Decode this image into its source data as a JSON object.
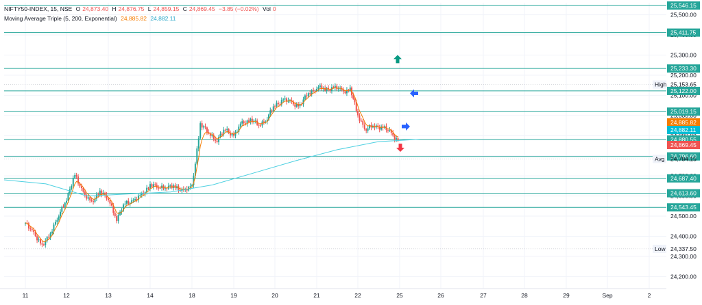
{
  "legend": {
    "symbol": "NIFTY50-INDEX, 15, NSE",
    "o_label": "O",
    "o": "24,873.40",
    "h_label": "H",
    "h": "24,876.75",
    "l_label": "L",
    "l": "24,859.15",
    "c_label": "C",
    "c": "24,869.45",
    "change": "−3.85 (−0.02%)",
    "vol_label": "Vol",
    "vol": "0",
    "ma_name": "Moving Average Triple (5, 200, Exponential)",
    "ma_fast": "24,885.82",
    "ma_slow": "24,882.11"
  },
  "colors": {
    "up": "#26a69a",
    "down": "#ef5350",
    "ma_fast": "#f57c00",
    "ma_slow": "#4dd0e1",
    "level": "#26a69a",
    "arrow_green": "#089981",
    "arrow_blue": "#2962ff",
    "arrow_red": "#f23645"
  },
  "chart_data": {
    "type": "candlestick",
    "x_ticks": [
      "11",
      "12",
      "13",
      "14",
      "18",
      "19",
      "20",
      "21",
      "22",
      "25",
      "26",
      "27",
      "28",
      "29",
      "Sep",
      "2"
    ],
    "y_ticks": [
      24200,
      24300,
      24400,
      24500,
      24600,
      24700,
      24800,
      24900,
      25000,
      25100,
      25200,
      25300,
      25400,
      25500
    ],
    "y_range": [
      24140,
      25560
    ],
    "levels": [
      25546.15,
      25411.75,
      25233.3,
      25122.0,
      25019.15,
      24880.55,
      24796.6,
      24687.4,
      24613.6,
      24543.45
    ],
    "high": {
      "label": "High",
      "value": 25153.65
    },
    "avg": {
      "label": "Avg",
      "value": 24784.15
    },
    "low": {
      "label": "Low",
      "value": 24337.5
    },
    "last_price": 24869.45,
    "ma_fast_last": 24885.82,
    "ma_slow_last": 24882.11,
    "arrows": [
      {
        "direction": "up",
        "color": "green",
        "day": "21",
        "price": 25280
      },
      {
        "direction": "left",
        "color": "blue",
        "day": "22",
        "price": 25110
      },
      {
        "direction": "right",
        "color": "blue",
        "day": "22",
        "price": 24945
      },
      {
        "direction": "down",
        "color": "red",
        "day": "22",
        "price": 24840
      }
    ],
    "anchors": [
      [
        "11",
        24460
      ],
      [
        "11",
        24420
      ],
      [
        "11",
        24345
      ],
      [
        "11",
        24420
      ],
      [
        "11",
        24500
      ],
      [
        "12",
        24590
      ],
      [
        "12",
        24700
      ],
      [
        "12",
        24620
      ],
      [
        "12",
        24560
      ],
      [
        "12",
        24630
      ],
      [
        "13",
        24580
      ],
      [
        "13",
        24490
      ],
      [
        "13",
        24560
      ],
      [
        "13",
        24580
      ],
      [
        "13",
        24600
      ],
      [
        "14",
        24660
      ],
      [
        "14",
        24640
      ],
      [
        "14",
        24650
      ],
      [
        "14",
        24640
      ],
      [
        "14",
        24630
      ],
      [
        "18",
        24640
      ],
      [
        "18",
        24960
      ],
      [
        "18",
        24910
      ],
      [
        "18",
        24880
      ],
      [
        "18",
        24930
      ],
      [
        "19",
        24900
      ],
      [
        "19",
        24960
      ],
      [
        "19",
        24980
      ],
      [
        "19",
        24950
      ],
      [
        "19",
        24990
      ],
      [
        "20",
        25050
      ],
      [
        "20",
        25080
      ],
      [
        "20",
        25060
      ],
      [
        "20",
        25050
      ],
      [
        "20",
        25110
      ],
      [
        "21",
        25140
      ],
      [
        "21",
        25130
      ],
      [
        "21",
        25140
      ],
      [
        "21",
        25120
      ],
      [
        "21",
        25130
      ],
      [
        "22",
        25000
      ],
      [
        "22",
        24930
      ],
      [
        "22",
        24950
      ],
      [
        "22",
        24940
      ],
      [
        "22",
        24910
      ],
      [
        "25",
        24870
      ]
    ],
    "ema200_anchors": [
      [
        "11",
        24660
      ],
      [
        "12",
        24600
      ],
      [
        "13",
        24610
      ],
      [
        "14",
        24620
      ],
      [
        "18",
        24655
      ],
      [
        "19",
        24715
      ],
      [
        "20",
        24775
      ],
      [
        "21",
        24830
      ],
      [
        "22",
        24870
      ],
      [
        "25",
        24882
      ]
    ]
  }
}
